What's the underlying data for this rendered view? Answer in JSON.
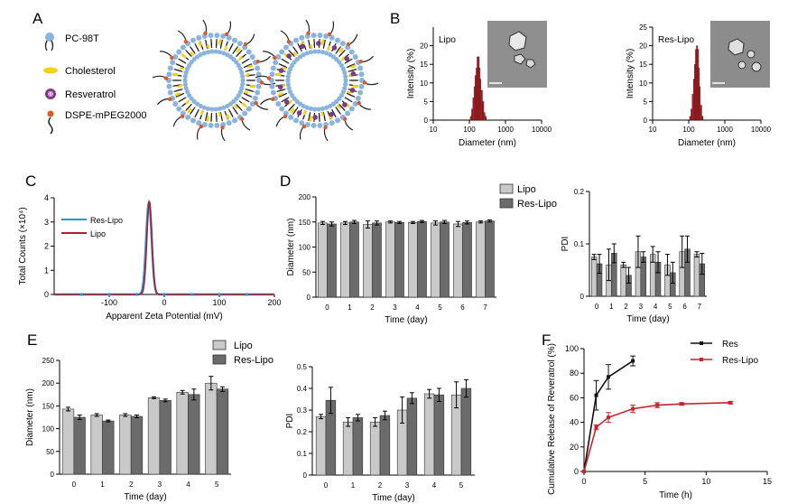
{
  "panel_letters": {
    "A": "A",
    "B": "B",
    "C": "C",
    "D": "D",
    "E": "E",
    "F": "F"
  },
  "schematic": {
    "legend": [
      "PC-98T",
      "Cholesterol",
      "Resveratrol",
      "DSPE-mPEG2000"
    ],
    "colors": {
      "head": "#8ab4dd",
      "cholesterol": "#f3d21b",
      "resveratrol": "#7b3d7e",
      "peg_head": "#d95b2b"
    }
  },
  "colors": {
    "light_bar": "#c9c9c9",
    "dark_bar": "#6b6b6b",
    "dls_bar": "#c0272d",
    "res_line": "#1a9ad6",
    "lipo_line": "#b01c2e",
    "release_res": "#111111",
    "release_lipo": "#c8232c"
  },
  "chart_data": [
    {
      "id": "B1",
      "type": "bar",
      "title": "Lipo",
      "xlabel": "Diameter (nm)",
      "ylabel": "Intensity (%)",
      "x_scale": "log",
      "xlim": [
        10,
        10000
      ],
      "ylim": [
        0,
        25
      ],
      "xticks": [
        "10",
        "100",
        "1000",
        "10000"
      ],
      "yticks": [
        "0",
        "5",
        "10",
        "15",
        "20"
      ],
      "x": [
        110,
        120,
        130,
        140,
        150,
        160,
        170,
        180,
        190,
        200,
        220,
        240,
        260,
        280
      ],
      "values": [
        1,
        3,
        6,
        9,
        12,
        14,
        17,
        17,
        14,
        11,
        8,
        5,
        2,
        1
      ]
    },
    {
      "id": "B2",
      "type": "bar",
      "title": "Res-Lipo",
      "xlabel": "Diameter (nm)",
      "ylabel": "Intensity (%)",
      "x_scale": "log",
      "xlim": [
        10,
        10000
      ],
      "ylim": [
        0,
        25
      ],
      "xticks": [
        "10",
        "100",
        "1000",
        "10000"
      ],
      "yticks": [
        "0",
        "5",
        "10",
        "15",
        "20",
        "25"
      ],
      "x": [
        110,
        120,
        130,
        140,
        150,
        160,
        170,
        180,
        190,
        200,
        220,
        240
      ],
      "values": [
        1,
        3,
        7,
        11,
        15,
        19,
        20,
        19,
        14,
        9,
        4,
        1
      ]
    },
    {
      "id": "C",
      "type": "line",
      "xlabel": "Apparent Zeta Potential (mV)",
      "ylabel": "Total Counts (×10⁴)",
      "xlim": [
        -200,
        200
      ],
      "ylim": [
        0,
        4
      ],
      "xticks": [
        "-100",
        "0",
        "100",
        "200"
      ],
      "yticks": [
        "0",
        "1",
        "2",
        "3",
        "4"
      ],
      "series": [
        {
          "name": "Res-Lipo",
          "center": -28,
          "sigma": 5,
          "peak": 3.8
        },
        {
          "name": "Lipo",
          "center": -27,
          "sigma": 4.6,
          "peak": 3.85
        }
      ]
    },
    {
      "id": "D1",
      "type": "bar",
      "xlabel": "Time (day)",
      "ylabel": "Diameter (nm)",
      "ylim": [
        0,
        200
      ],
      "categories": [
        "0",
        "1",
        "2",
        "3",
        "4",
        "5",
        "6",
        "7"
      ],
      "yticks": [
        "0",
        "50",
        "100",
        "150",
        "200"
      ],
      "series": [
        {
          "name": "Lipo",
          "values": [
            148,
            148,
            145,
            150,
            149,
            148,
            146,
            150
          ],
          "errors": [
            3,
            3,
            7,
            2,
            2,
            4,
            5,
            2
          ]
        },
        {
          "name": "Res-Lipo",
          "values": [
            146,
            150,
            148,
            149,
            151,
            150,
            149,
            152
          ],
          "errors": [
            4,
            3,
            4,
            2,
            2,
            3,
            3,
            2
          ]
        }
      ]
    },
    {
      "id": "D2",
      "type": "bar",
      "xlabel": "Time (day)",
      "ylabel": "PDI",
      "ylim": [
        0,
        0.2
      ],
      "categories": [
        "0",
        "1",
        "2",
        "3",
        "4",
        "5",
        "6",
        "7"
      ],
      "yticks": [
        "0",
        "0.1",
        "0.2"
      ],
      "series": [
        {
          "name": "Lipo",
          "values": [
            0.075,
            0.06,
            0.06,
            0.085,
            0.08,
            0.06,
            0.085,
            0.08
          ],
          "errors": [
            0.005,
            0.03,
            0.005,
            0.03,
            0.015,
            0.02,
            0.03,
            0.005
          ]
        },
        {
          "name": "Res-Lipo",
          "values": [
            0.062,
            0.082,
            0.04,
            0.075,
            0.065,
            0.045,
            0.09,
            0.062
          ],
          "errors": [
            0.018,
            0.018,
            0.015,
            0.01,
            0.02,
            0.02,
            0.025,
            0.02
          ]
        }
      ]
    },
    {
      "id": "E1",
      "type": "bar",
      "xlabel": "Time (day)",
      "ylabel": "Diameter (nm)",
      "ylim": [
        0,
        250
      ],
      "categories": [
        "0",
        "1",
        "2",
        "3",
        "4",
        "5"
      ],
      "yticks": [
        "0",
        "50",
        "100",
        "150",
        "200",
        "250"
      ],
      "series": [
        {
          "name": "Lipo",
          "values": [
            143,
            130,
            130,
            168,
            180,
            200
          ],
          "errors": [
            4,
            3,
            3,
            2,
            4,
            15
          ]
        },
        {
          "name": "Res-Lipo",
          "values": [
            125,
            117,
            127,
            162,
            175,
            187
          ],
          "errors": [
            5,
            2,
            3,
            3,
            12,
            5
          ]
        }
      ]
    },
    {
      "id": "E2",
      "type": "bar",
      "xlabel": "Time (day)",
      "ylabel": "PDI",
      "ylim": [
        0,
        0.5
      ],
      "categories": [
        "0",
        "1",
        "2",
        "3",
        "4",
        "5"
      ],
      "yticks": [
        "0",
        "0.1",
        "0.2",
        "0.3",
        "0.4",
        "0.5"
      ],
      "series": [
        {
          "name": "Lipo",
          "values": [
            0.27,
            0.245,
            0.245,
            0.3,
            0.375,
            0.37
          ],
          "errors": [
            0.01,
            0.02,
            0.02,
            0.06,
            0.02,
            0.06
          ]
        },
        {
          "name": "Res-Lipo",
          "values": [
            0.345,
            0.265,
            0.275,
            0.355,
            0.37,
            0.4
          ],
          "errors": [
            0.06,
            0.015,
            0.02,
            0.025,
            0.03,
            0.04
          ]
        }
      ]
    },
    {
      "id": "F",
      "type": "line",
      "xlabel": "Time (h)",
      "ylabel": "Cumulative Release of Reveratrol (%)",
      "xlim": [
        0,
        15
      ],
      "ylim": [
        0,
        100
      ],
      "xticks": [
        "0",
        "5",
        "10",
        "15"
      ],
      "yticks": [
        "0",
        "20",
        "40",
        "60",
        "80",
        "100"
      ],
      "series": [
        {
          "name": "Res",
          "x": [
            0,
            1,
            2,
            4
          ],
          "y": [
            0,
            62,
            77,
            90
          ],
          "errors": [
            0,
            12,
            10,
            4
          ]
        },
        {
          "name": "Res-Lipo",
          "x": [
            0,
            1,
            2,
            4,
            6,
            8,
            12
          ],
          "y": [
            0,
            36,
            44,
            51,
            54,
            55,
            56
          ],
          "errors": [
            0,
            2,
            4,
            3,
            2,
            1,
            1
          ]
        }
      ]
    }
  ],
  "legends": {
    "D": [
      "Lipo",
      "Res-Lipo"
    ],
    "E": [
      "Lipo",
      "Res-Lipo"
    ],
    "C": [
      "Res-Lipo",
      "Lipo"
    ],
    "F": [
      "Res",
      "Res-Lipo"
    ]
  }
}
